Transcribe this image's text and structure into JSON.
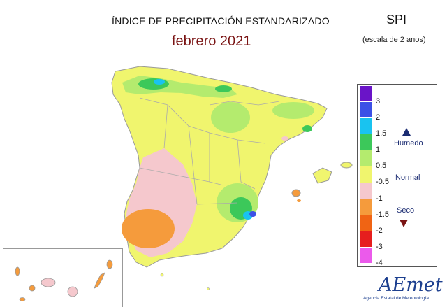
{
  "header": {
    "title": "ÍNDICE DE PRECIPITACIÓN ESTANDARIZADO",
    "subtitle": "febrero 2021",
    "index_name": "SPI",
    "scale": "(escala de 2 anos)"
  },
  "legend": {
    "ticks": [
      "3",
      "2",
      "1.5",
      "1",
      "0.5",
      "-0.5",
      "-1",
      "-1.5",
      "-2",
      "-3",
      "-4"
    ],
    "colors": [
      "#6a14c8",
      "#3c50e6",
      "#19c3f0",
      "#3cc85a",
      "#b4eb6e",
      "#f0f56e",
      "#f5c8cd",
      "#f59b3c",
      "#f06414",
      "#e61e1e",
      "#eb5aeb",
      "#c84bf5"
    ],
    "class_humid": "Humedo",
    "class_normal": "Normal",
    "class_dry": "Seco"
  },
  "logo": {
    "name": "AEmet",
    "tagline": "Agencia Estatal de Meteorología"
  }
}
